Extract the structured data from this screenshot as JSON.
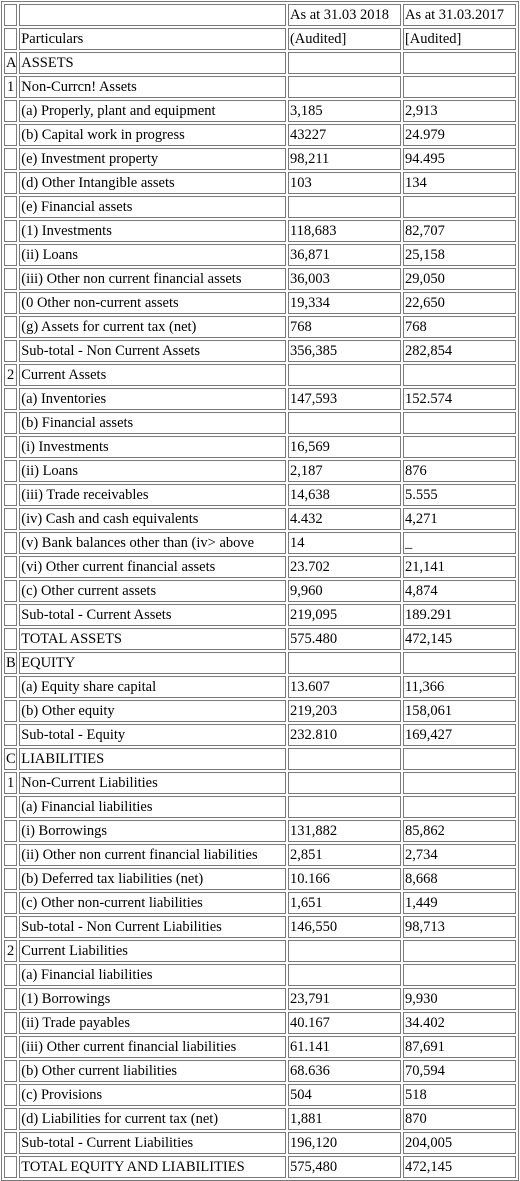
{
  "header": {
    "col1": "As at 31.03 2018",
    "col2": "As at 31.03.2017",
    "particulars": "Particulars",
    "col1_sub": "(Audited]",
    "col2_sub": "[Audited]"
  },
  "rows": [
    {
      "idx": "A",
      "label": "ASSETS",
      "v1": "",
      "v2": ""
    },
    {
      "idx": "1",
      "label": "Non-Currcn! Assets",
      "v1": "",
      "v2": ""
    },
    {
      "idx": "",
      "label": "(a) Properly, plant and equipment",
      "v1": "3,185",
      "v2": "2,913"
    },
    {
      "idx": "",
      "label": "(b) Capital work in progress",
      "v1": "43227",
      "v2": "24.979"
    },
    {
      "idx": "",
      "label": "(e) Investment property",
      "v1": "98,211",
      "v2": "94.495"
    },
    {
      "idx": "",
      "label": "(d) Other Intangible assets",
      "v1": "103",
      "v2": "134"
    },
    {
      "idx": "",
      "label": "(e) Financial assets",
      "v1": "",
      "v2": ""
    },
    {
      "idx": "",
      "label": "(1) Investments",
      "v1": "118,683",
      "v2": "82,707"
    },
    {
      "idx": "",
      "label": "(ii) Loans",
      "v1": "36,871",
      "v2": "25,158"
    },
    {
      "idx": "",
      "label": "(iii) Other non current financial assets",
      "v1": "36,003",
      "v2": "29,050"
    },
    {
      "idx": "",
      "label": "(0 Other non-current assets",
      "v1": "19,334",
      "v2": "22,650"
    },
    {
      "idx": "",
      "label": "(g) Assets for current tax (net)",
      "v1": "768",
      "v2": "768"
    },
    {
      "idx": "",
      "label": "Sub-total - Non Current Assets",
      "v1": "356,385",
      "v2": "282,854"
    },
    {
      "idx": "2",
      "label": "Current Assets",
      "v1": "",
      "v2": ""
    },
    {
      "idx": "",
      "label": "(a) Inventories",
      "v1": "147,593",
      "v2": "152.574"
    },
    {
      "idx": "",
      "label": "(b) Financial assets",
      "v1": "",
      "v2": ""
    },
    {
      "idx": "",
      "label": "(i) Investments",
      "v1": "16,569",
      "v2": ""
    },
    {
      "idx": "",
      "label": "(ii) Loans",
      "v1": "2,187",
      "v2": "876"
    },
    {
      "idx": "",
      "label": "(iii) Trade receivables",
      "v1": "14,638",
      "v2": "5.555"
    },
    {
      "idx": "",
      "label": "(iv) Cash and cash equivalents",
      "v1": "4.432",
      "v2": "4,271"
    },
    {
      "idx": "",
      "label": "(v) Bank balances other than (iv> above",
      "v1": "14",
      "v2": "_"
    },
    {
      "idx": "",
      "label": "(vi) Other current financial assets",
      "v1": "23.702",
      "v2": "21,141"
    },
    {
      "idx": "",
      "label": "(c) Other current assets",
      "v1": "9,960",
      "v2": "4,874"
    },
    {
      "idx": "",
      "label": "Sub-total - Current Assets",
      "v1": "219,095",
      "v2": "189.291"
    },
    {
      "idx": "",
      "label": "TOTAL ASSETS",
      "v1": "575.480",
      "v2": "472,145"
    },
    {
      "idx": "B",
      "label": "EQUITY",
      "v1": "",
      "v2": ""
    },
    {
      "idx": "",
      "label": "(a) Equity share capital",
      "v1": "13.607",
      "v2": "11,366"
    },
    {
      "idx": "",
      "label": "(b) Other equity",
      "v1": "219,203",
      "v2": "158,061"
    },
    {
      "idx": "",
      "label": "Sub-total - Equity",
      "v1": "232.810",
      "v2": "169,427"
    },
    {
      "idx": "C",
      "label": "LIABILITIES",
      "v1": "",
      "v2": ""
    },
    {
      "idx": "1",
      "label": "Non-Current Liabilities",
      "v1": "",
      "v2": ""
    },
    {
      "idx": "",
      "label": "(a) Financial liabilities",
      "v1": "",
      "v2": ""
    },
    {
      "idx": "",
      "label": "(i) Borrowings",
      "v1": "131,882",
      "v2": "85,862"
    },
    {
      "idx": "",
      "label": "(ii) Other non current financial liabilities",
      "v1": "2,851",
      "v2": "2,734"
    },
    {
      "idx": "",
      "label": "(b) Deferred tax liabilities (net)",
      "v1": "10.166",
      "v2": "8,668"
    },
    {
      "idx": "",
      "label": "(c) Other non-current liabilities",
      "v1": "1,651",
      "v2": "1,449"
    },
    {
      "idx": "",
      "label": "Sub-total - Non Current Liabilities",
      "v1": "146,550",
      "v2": "98,713"
    },
    {
      "idx": "2",
      "label": "Current Liabilities",
      "v1": "",
      "v2": ""
    },
    {
      "idx": "",
      "label": "(a) Financial liabilities",
      "v1": "",
      "v2": ""
    },
    {
      "idx": "",
      "label": "(1) Borrowings",
      "v1": "23,791",
      "v2": "9,930"
    },
    {
      "idx": "",
      "label": "(ii) Trade payables",
      "v1": "40.167",
      "v2": "34.402"
    },
    {
      "idx": "",
      "label": "(iii) Other current financial liabilities",
      "v1": "61.141",
      "v2": "87,691"
    },
    {
      "idx": "",
      "label": "(b) Other current liabilities",
      "v1": "68.636",
      "v2": "70,594"
    },
    {
      "idx": "",
      "label": "(c) Provisions",
      "v1": "504",
      "v2": "518"
    },
    {
      "idx": "",
      "label": "(d) Liabilities for current tax (net)",
      "v1": "1,881",
      "v2": "870"
    },
    {
      "idx": "",
      "label": "Sub-total - Current Liabilities",
      "v1": "196,120",
      "v2": "204,005"
    },
    {
      "idx": "",
      "label": "TOTAL EQUITY AND LIABILITIES",
      "v1": "575,480",
      "v2": "472,145"
    }
  ]
}
